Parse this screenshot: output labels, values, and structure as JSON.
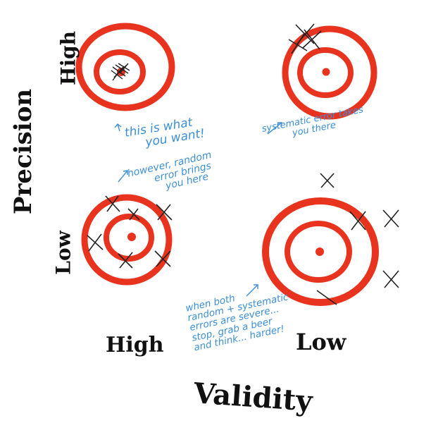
{
  "labels": {
    "y_axis_title": "Precision",
    "y_high": "High",
    "y_low": "Low",
    "x_axis_title": "Validity",
    "x_high": "High",
    "x_low": "Low"
  },
  "notes": {
    "top_left": "this is what\n     you want!",
    "top_right": "systematic error takes\n          you there",
    "bottom_left": "however, random\n        error brings\n           you here",
    "bottom_right": "when both\nrandom + systematic\nerrors are severe...\nstop, grab a beer\nand think... harder!"
  },
  "colors": {
    "target_red": "#e8331f",
    "note_blue": "#3c8fd6",
    "ink_black": "#111111"
  }
}
